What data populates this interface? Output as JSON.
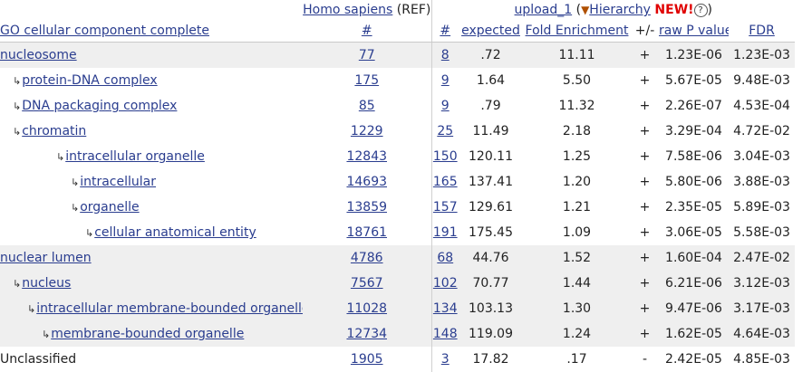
{
  "header": {
    "species_link": "Homo sapiens",
    "ref_label": "(REF)",
    "upload_link": "upload_1",
    "open_paren": "(",
    "hierarchy_triangle": "▼",
    "hierarchy_link": "Hierarchy",
    "new_badge": "NEW!",
    "help_glyph": "?",
    "close_paren": ")"
  },
  "columns": {
    "category": "GO cellular component complete",
    "ref_count": "#",
    "upload_count": "#",
    "expected": "expected",
    "fold": "Fold Enrichment",
    "sign": "+/-",
    "pvalue": "raw P value",
    "fdr": "FDR"
  },
  "arrow_glyph": "↳",
  "rows": [
    {
      "name": "nucleosome",
      "ref": "77",
      "count": "8",
      "expected": ".72",
      "fold": "11.11",
      "sign": "+",
      "p": "1.23E-06",
      "fdr": "1.23E-03"
    },
    {
      "name": "protein-DNA complex",
      "ref": "175",
      "count": "9",
      "expected": "1.64",
      "fold": "5.50",
      "sign": "+",
      "p": "5.67E-05",
      "fdr": "9.48E-03"
    },
    {
      "name": "DNA packaging complex",
      "ref": "85",
      "count": "9",
      "expected": ".79",
      "fold": "11.32",
      "sign": "+",
      "p": "2.26E-07",
      "fdr": "4.53E-04"
    },
    {
      "name": "chromatin",
      "ref": "1229",
      "count": "25",
      "expected": "11.49",
      "fold": "2.18",
      "sign": "+",
      "p": "3.29E-04",
      "fdr": "4.72E-02"
    },
    {
      "name": "intracellular organelle",
      "ref": "12843",
      "count": "150",
      "expected": "120.11",
      "fold": "1.25",
      "sign": "+",
      "p": "7.58E-06",
      "fdr": "3.04E-03"
    },
    {
      "name": "intracellular",
      "ref": "14693",
      "count": "165",
      "expected": "137.41",
      "fold": "1.20",
      "sign": "+",
      "p": "5.80E-06",
      "fdr": "3.88E-03"
    },
    {
      "name": "organelle",
      "ref": "13859",
      "count": "157",
      "expected": "129.61",
      "fold": "1.21",
      "sign": "+",
      "p": "2.35E-05",
      "fdr": "5.89E-03"
    },
    {
      "name": "cellular anatomical entity",
      "ref": "18761",
      "count": "191",
      "expected": "175.45",
      "fold": "1.09",
      "sign": "+",
      "p": "3.06E-05",
      "fdr": "5.58E-03"
    },
    {
      "name": "nuclear lumen",
      "ref": "4786",
      "count": "68",
      "expected": "44.76",
      "fold": "1.52",
      "sign": "+",
      "p": "1.60E-04",
      "fdr": "2.47E-02"
    },
    {
      "name": "nucleus",
      "ref": "7567",
      "count": "102",
      "expected": "70.77",
      "fold": "1.44",
      "sign": "+",
      "p": "6.21E-06",
      "fdr": "3.12E-03"
    },
    {
      "name": "intracellular membrane-bounded organelle",
      "ref": "11028",
      "count": "134",
      "expected": "103.13",
      "fold": "1.30",
      "sign": "+",
      "p": "9.47E-06",
      "fdr": "3.17E-03"
    },
    {
      "name": "membrane-bounded organelle",
      "ref": "12734",
      "count": "148",
      "expected": "119.09",
      "fold": "1.24",
      "sign": "+",
      "p": "1.62E-05",
      "fdr": "4.64E-03"
    },
    {
      "name": "Unclassified",
      "ref": "1905",
      "count": "3",
      "expected": "17.82",
      "fold": ".17",
      "sign": "-",
      "p": "2.42E-05",
      "fdr": "4.85E-03"
    }
  ]
}
